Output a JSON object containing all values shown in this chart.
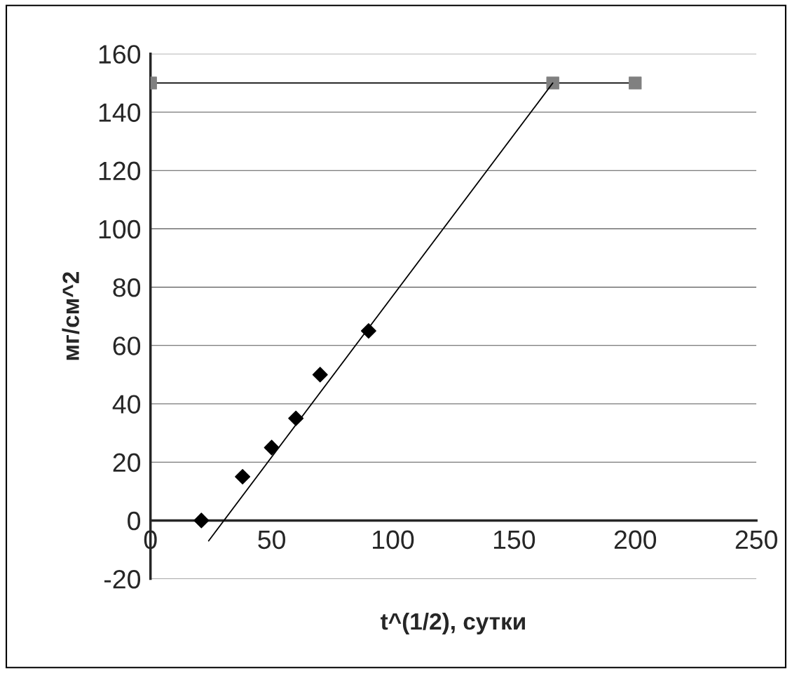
{
  "chart_data": {
    "type": "scatter",
    "xlabel": "t^(1/2), сутки",
    "ylabel": "мг/см^2",
    "xlim": [
      0,
      250
    ],
    "xticks": [
      0,
      50,
      100,
      150,
      200,
      250
    ],
    "ylim": [
      -20,
      160
    ],
    "yticks": [
      -20,
      0,
      20,
      40,
      60,
      80,
      100,
      120,
      140,
      160
    ],
    "grid": "y",
    "series": [
      {
        "marker": "diamond",
        "color": "#000000",
        "x": [
          21,
          38,
          50,
          60,
          70,
          90
        ],
        "values": [
          0,
          15,
          25,
          35,
          50,
          65
        ]
      },
      {
        "type": "line",
        "marker": "square",
        "color": "#808080",
        "x": [
          0,
          166,
          200
        ],
        "values": [
          150,
          150,
          150
        ]
      },
      {
        "type": "line",
        "marker": "none",
        "color": "#000000",
        "x": [
          24,
          166
        ],
        "values": [
          -7,
          150
        ]
      }
    ]
  }
}
